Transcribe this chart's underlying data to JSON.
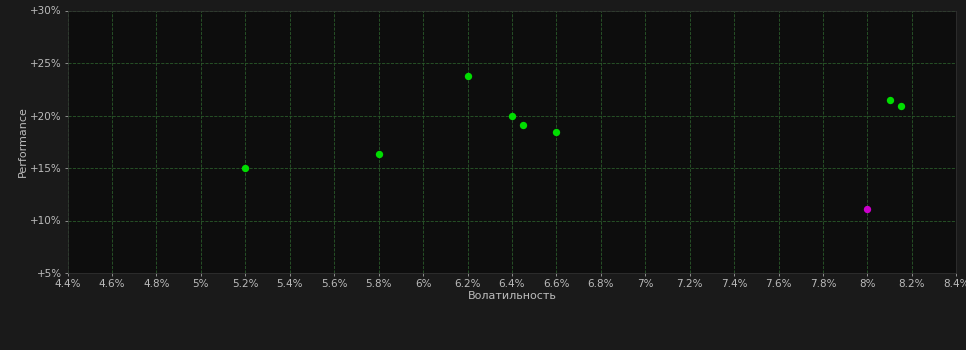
{
  "background_color": "#1a1a1a",
  "plot_bg_color": "#0d0d0d",
  "grid_color": "#2a5a2a",
  "grid_linestyle": "--",
  "xlabel": "Волатильность",
  "ylabel": "Performance",
  "xlim": [
    0.044,
    0.084
  ],
  "ylim": [
    0.05,
    0.3
  ],
  "xticks": [
    0.044,
    0.046,
    0.048,
    0.05,
    0.052,
    0.054,
    0.056,
    0.058,
    0.06,
    0.062,
    0.064,
    0.066,
    0.068,
    0.07,
    0.072,
    0.074,
    0.076,
    0.078,
    0.08,
    0.082,
    0.084
  ],
  "yticks": [
    0.05,
    0.1,
    0.15,
    0.2,
    0.25,
    0.3
  ],
  "ytick_labels": [
    "+5%",
    "+10%",
    "+15%",
    "+20%",
    "+25%",
    "+30%"
  ],
  "xtick_labels": [
    "4.4%",
    "4.6%",
    "4.8%",
    "5%",
    "5.2%",
    "5.4%",
    "5.6%",
    "5.8%",
    "6%",
    "6.2%",
    "6.4%",
    "6.6%",
    "6.8%",
    "7%",
    "7.2%",
    "7.4%",
    "7.6%",
    "7.8%",
    "8%",
    "8.2%",
    "8.4%"
  ],
  "points_green": [
    [
      0.052,
      0.15
    ],
    [
      0.058,
      0.163
    ],
    [
      0.062,
      0.238
    ],
    [
      0.064,
      0.2
    ],
    [
      0.0645,
      0.191
    ],
    [
      0.066,
      0.184
    ],
    [
      0.081,
      0.215
    ],
    [
      0.0815,
      0.209
    ]
  ],
  "points_magenta": [
    [
      0.08,
      0.111
    ]
  ],
  "point_color_green": "#00dd00",
  "point_color_magenta": "#cc00cc",
  "marker_size": 28,
  "tick_color": "#bbbbbb",
  "tick_fontsize": 7.5,
  "label_fontsize": 8,
  "label_color": "#bbbbbb"
}
